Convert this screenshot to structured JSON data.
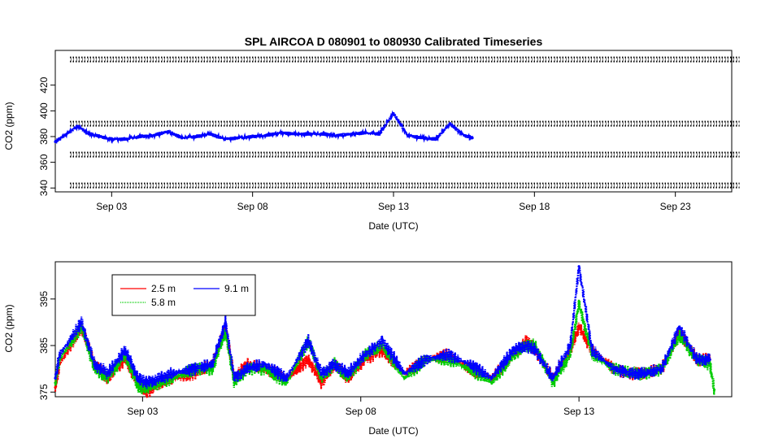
{
  "title": "SPL   AIRCOA  D   080901  to  080930   Calibrated Timeseries",
  "colors": {
    "series_2_5": "#ff0000",
    "series_5_8": "#00cc00",
    "series_9_1": "#0000ff",
    "frame": "#000000"
  },
  "chart_data": [
    {
      "type": "scatter",
      "xlabel": "Date (UTC)",
      "ylabel": "CO2 (ppm)",
      "xlim": [
        "2008-09-01",
        "2008-09-25"
      ],
      "ylim": [
        337,
        447
      ],
      "xticks": [
        {
          "date": "2008-09-03",
          "label": "Sep 03"
        },
        {
          "date": "2008-09-08",
          "label": "Sep 08"
        },
        {
          "date": "2008-09-13",
          "label": "Sep 13"
        },
        {
          "date": "2008-09-18",
          "label": "Sep 18"
        },
        {
          "date": "2008-09-23",
          "label": "Sep 23"
        }
      ],
      "yticks": [
        {
          "value": 340,
          "label": "340"
        },
        {
          "value": 360,
          "label": "360"
        },
        {
          "value": 380,
          "label": "380"
        },
        {
          "value": 400,
          "label": "400"
        },
        {
          "value": 420,
          "label": "420"
        }
      ],
      "reference_levels": [
        342,
        366,
        390,
        440
      ],
      "reference_range": [
        "2008-09-01",
        "2008-09-24.7"
      ],
      "series": [
        {
          "color": "blue",
          "x": [
            "2008-09-01.0",
            "2008-09-01.4",
            "2008-09-01.8",
            "2008-09-02.2",
            "2008-09-02.6",
            "2008-09-03.0",
            "2008-09-03.5",
            "2008-09-04.0",
            "2008-09-04.5",
            "2008-09-05.0",
            "2008-09-05.5",
            "2008-09-06.0",
            "2008-09-06.5",
            "2008-09-07.0",
            "2008-09-07.5",
            "2008-09-08.0",
            "2008-09-08.5",
            "2008-09-09.0",
            "2008-09-09.5",
            "2008-09-10.0",
            "2008-09-10.5",
            "2008-09-11.0",
            "2008-09-11.5",
            "2008-09-12.0",
            "2008-09-12.5",
            "2008-09-13.0",
            "2008-09-13.5",
            "2008-09-14.0",
            "2008-09-14.5",
            "2008-09-15.0",
            "2008-09-15.5",
            "2008-09-15.8"
          ],
          "y": [
            376,
            382,
            388,
            382,
            380,
            378,
            378,
            380,
            381,
            384,
            379,
            380,
            382,
            378,
            379,
            380,
            381,
            383,
            382,
            382,
            382,
            381,
            382,
            383,
            382,
            398,
            381,
            379,
            378,
            390,
            381,
            379
          ]
        }
      ]
    },
    {
      "type": "scatter",
      "xlabel": "Date (UTC)",
      "ylabel": "CO2 (ppm)",
      "xlim": [
        "2008-09-01",
        "2008-09-16.5"
      ],
      "ylim": [
        374,
        403
      ],
      "legend": "top-left",
      "xticks": [
        {
          "date": "2008-09-03",
          "label": "Sep 03"
        },
        {
          "date": "2008-09-08",
          "label": "Sep 08"
        },
        {
          "date": "2008-09-13",
          "label": "Sep 13"
        }
      ],
      "yticks": [
        {
          "value": 375,
          "label": "375"
        },
        {
          "value": 385,
          "label": "385"
        },
        {
          "value": 395,
          "label": "395"
        }
      ],
      "series": [
        {
          "name": "2.5 m",
          "color": "red",
          "x": [
            "2008-09-01.0",
            "2008-09-01.1",
            "2008-09-01.6",
            "2008-09-01.9",
            "2008-09-02.2",
            "2008-09-02.6",
            "2008-09-02.9",
            "2008-09-03.1",
            "2008-09-03.4",
            "2008-09-03.7",
            "2008-09-04.2",
            "2008-09-04.6",
            "2008-09-04.9",
            "2008-09-05.1",
            "2008-09-05.4",
            "2008-09-05.8",
            "2008-09-06.3",
            "2008-09-06.8",
            "2008-09-07.1",
            "2008-09-07.4",
            "2008-09-07.7",
            "2008-09-08.1",
            "2008-09-08.5",
            "2008-09-09.0",
            "2008-09-09.5",
            "2008-09-10.0",
            "2008-09-10.5",
            "2008-09-11.0",
            "2008-09-11.5",
            "2008-09-11.8",
            "2008-09-12.0",
            "2008-09-12.4",
            "2008-09-12.8",
            "2008-09-13.0",
            "2008-09-13.3",
            "2008-09-13.8",
            "2008-09-14.2",
            "2008-09-14.5",
            "2008-09-14.9",
            "2008-09-15.3",
            "2008-09-15.7",
            "2008-09-16.0"
          ],
          "y": [
            376,
            381,
            389,
            381,
            378,
            382,
            377,
            375,
            377,
            378,
            379,
            381,
            389,
            378,
            381,
            380,
            378,
            382,
            377,
            381,
            378,
            382,
            384,
            379,
            382,
            383,
            380,
            378,
            383,
            386,
            384,
            378,
            384,
            389,
            384,
            380,
            379,
            379,
            380,
            388,
            382,
            382
          ]
        },
        {
          "name": "5.8 m",
          "color": "green",
          "x": [
            "2008-09-01.0",
            "2008-09-01.1",
            "2008-09-01.6",
            "2008-09-01.9",
            "2008-09-02.2",
            "2008-09-02.6",
            "2008-09-02.9",
            "2008-09-03.1",
            "2008-09-03.4",
            "2008-09-03.7",
            "2008-09-04.2",
            "2008-09-04.6",
            "2008-09-04.9",
            "2008-09-05.1",
            "2008-09-05.4",
            "2008-09-05.8",
            "2008-09-06.3",
            "2008-09-06.8",
            "2008-09-07.1",
            "2008-09-07.4",
            "2008-09-07.7",
            "2008-09-08.1",
            "2008-09-08.5",
            "2008-09-09.0",
            "2008-09-09.5",
            "2008-09-10.0",
            "2008-09-10.5",
            "2008-09-11.0",
            "2008-09-11.5",
            "2008-09-11.8",
            "2008-09-12.0",
            "2008-09-12.4",
            "2008-09-12.8",
            "2008-09-13.0",
            "2008-09-13.3",
            "2008-09-13.8",
            "2008-09-14.2",
            "2008-09-14.5",
            "2008-09-14.9",
            "2008-09-15.3",
            "2008-09-15.7",
            "2008-09-16.0",
            "2008-09-16.1"
          ],
          "y": [
            377,
            382,
            389,
            380,
            378,
            383,
            376,
            376,
            377,
            378,
            380,
            380,
            388,
            377,
            380,
            380,
            377,
            386,
            378,
            381,
            378,
            383,
            385,
            378,
            382,
            382,
            380,
            377,
            383,
            385,
            385,
            377,
            383,
            394,
            383,
            380,
            379,
            379,
            380,
            387,
            382,
            381,
            375.5
          ]
        },
        {
          "name": "9.1 m",
          "color": "blue",
          "x": [
            "2008-09-01.0",
            "2008-09-01.1",
            "2008-09-01.6",
            "2008-09-01.9",
            "2008-09-02.2",
            "2008-09-02.6",
            "2008-09-02.9",
            "2008-09-03.1",
            "2008-09-03.4",
            "2008-09-03.7",
            "2008-09-04.2",
            "2008-09-04.6",
            "2008-09-04.9",
            "2008-09-05.1",
            "2008-09-05.4",
            "2008-09-05.8",
            "2008-09-06.3",
            "2008-09-06.8",
            "2008-09-07.1",
            "2008-09-07.4",
            "2008-09-07.7",
            "2008-09-08.1",
            "2008-09-08.5",
            "2008-09-09.0",
            "2008-09-09.5",
            "2008-09-10.0",
            "2008-09-10.5",
            "2008-09-11.0",
            "2008-09-11.5",
            "2008-09-11.8",
            "2008-09-12.0",
            "2008-09-12.4",
            "2008-09-12.8",
            "2008-09-13.0",
            "2008-09-13.3",
            "2008-09-13.8",
            "2008-09-14.2",
            "2008-09-14.5",
            "2008-09-14.9",
            "2008-09-15.3",
            "2008-09-15.7",
            "2008-09-16.0"
          ],
          "y": [
            378,
            383,
            390,
            381,
            379,
            384,
            378,
            377,
            378,
            379,
            380,
            381,
            390,
            378,
            380,
            381,
            378,
            386,
            379,
            381,
            379,
            383,
            386,
            379,
            382,
            383,
            381,
            378,
            384,
            385,
            384,
            378,
            385,
            402,
            384,
            380,
            379,
            379,
            380,
            389,
            382,
            382
          ]
        }
      ]
    }
  ]
}
